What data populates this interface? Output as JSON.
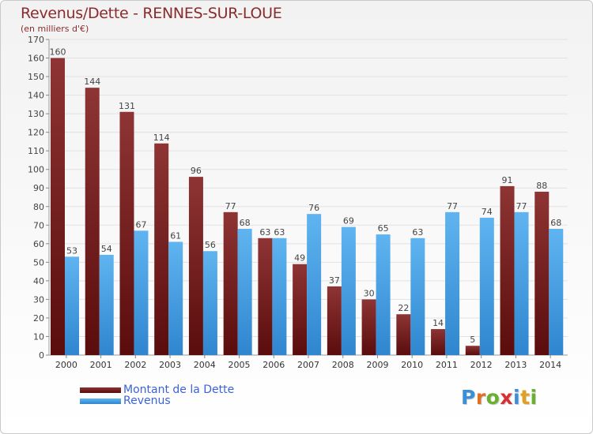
{
  "header": {
    "title": "Revenus/Dette - RENNES-SUR-LOUE",
    "subtitle": "(en milliers d'€)"
  },
  "chart_data": {
    "type": "bar",
    "title": "Revenus/Dette - RENNES-SUR-LOUE",
    "ylabel": "(en milliers d'€)",
    "categories": [
      "2000",
      "2001",
      "2002",
      "2003",
      "2004",
      "2005",
      "2006",
      "2007",
      "2008",
      "2009",
      "2010",
      "2011",
      "2012",
      "2013",
      "2014"
    ],
    "series": [
      {
        "name": "Montant de la Dette",
        "color": "#7a1a1a",
        "values": [
          160,
          144,
          131,
          114,
          96,
          77,
          63,
          49,
          37,
          30,
          22,
          14,
          5,
          91,
          88
        ]
      },
      {
        "name": "Revenus",
        "color": "#4aa3e8",
        "values": [
          53,
          54,
          67,
          61,
          56,
          68,
          63,
          76,
          69,
          65,
          63,
          77,
          74,
          77,
          68
        ]
      }
    ],
    "ylim": [
      0,
      170
    ],
    "yticks": [
      0,
      10,
      20,
      30,
      40,
      50,
      60,
      70,
      80,
      90,
      100,
      110,
      120,
      130,
      140,
      150,
      160,
      170
    ],
    "grid": true,
    "legend": "bottom-left"
  },
  "legend": {
    "items": [
      {
        "label": "Montant de la Dette",
        "color": "#7a1a1a"
      },
      {
        "label": "Revenus",
        "color": "#4aa3e8"
      }
    ]
  },
  "logo": {
    "letters": [
      {
        "ch": "P",
        "color": "#3b8fd8"
      },
      {
        "ch": "r",
        "color": "#e07020"
      },
      {
        "ch": "o",
        "color": "#6ab030"
      },
      {
        "ch": "x",
        "color": "#d83030"
      },
      {
        "ch": "i",
        "color": "#3b8fd8"
      },
      {
        "ch": "t",
        "color": "#e0a020"
      },
      {
        "ch": "i",
        "color": "#6ab030"
      }
    ]
  }
}
